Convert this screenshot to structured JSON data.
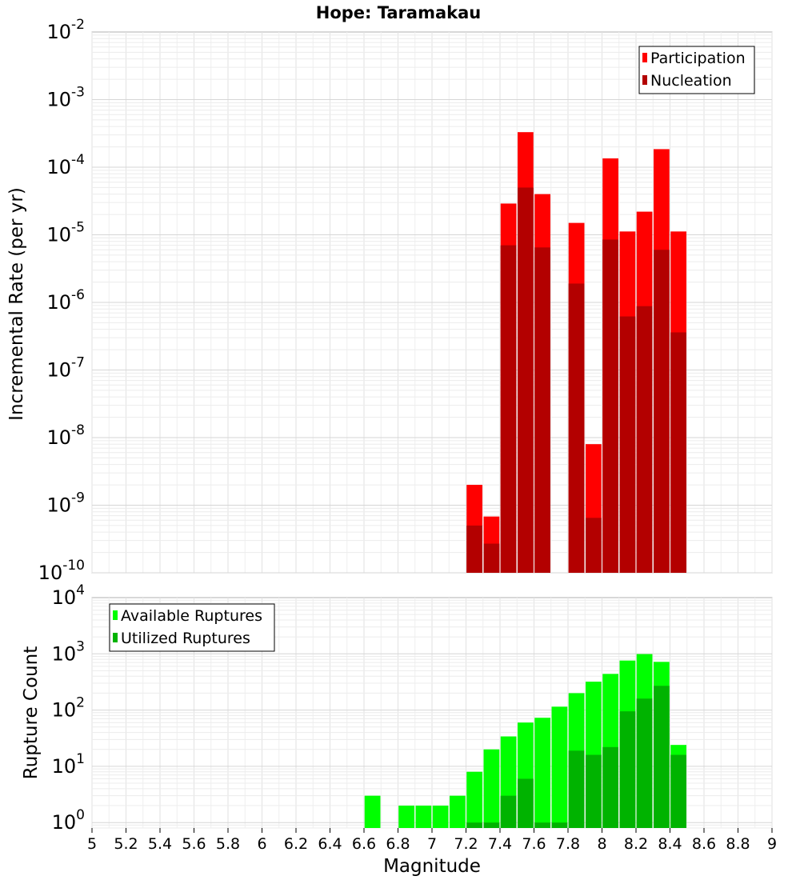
{
  "title": "Hope: Taramakau",
  "xlabel": "Magnitude",
  "x_ticks": [
    "5",
    "5.2",
    "5.4",
    "5.6",
    "5.8",
    "6",
    "6.2",
    "6.4",
    "6.6",
    "6.8",
    "7",
    "7.2",
    "7.4",
    "7.6",
    "7.8",
    "8",
    "8.2",
    "8.4",
    "8.6",
    "8.8",
    "9"
  ],
  "chart_data": [
    {
      "type": "bar",
      "ylabel": "Incremental Rate (per yr)",
      "y_scale": "log",
      "ylim": [
        1e-10,
        0.01
      ],
      "xlim": [
        5,
        9
      ],
      "y_tick_exponents": [
        -2,
        -3,
        -4,
        -5,
        -6,
        -7,
        -8,
        -9,
        -10
      ],
      "legend_position": "top-right",
      "grid": true,
      "x": [
        7.25,
        7.35,
        7.45,
        7.55,
        7.65,
        7.75,
        7.85,
        7.95,
        8.05,
        8.15,
        8.25,
        8.35,
        8.45
      ],
      "series": [
        {
          "name": "Participation",
          "color": "#ff0000",
          "values": [
            2e-09,
            6.8e-10,
            2.9e-05,
            0.00033,
            4e-05,
            null,
            1.5e-05,
            8e-09,
            0.000135,
            1.12e-05,
            2.2e-05,
            0.000185,
            1.12e-05
          ]
        },
        {
          "name": "Nucleation",
          "color": "#b30000",
          "values": [
            5e-10,
            2.7e-10,
            7e-06,
            5e-05,
            6.5e-06,
            null,
            1.9e-06,
            6.5e-10,
            8.5e-06,
            6.2e-07,
            8.8e-07,
            6e-06,
            3.6e-07
          ]
        }
      ]
    },
    {
      "type": "bar",
      "ylabel": "Rupture Count",
      "y_scale": "log",
      "ylim": [
        0.8,
        10000.0
      ],
      "xlim": [
        5,
        9
      ],
      "y_tick_exponents": [
        4,
        3,
        2,
        1,
        0
      ],
      "legend_position": "top-left",
      "grid": true,
      "x": [
        6.65,
        6.75,
        6.85,
        6.95,
        7.05,
        7.15,
        7.25,
        7.35,
        7.45,
        7.55,
        7.65,
        7.75,
        7.85,
        7.95,
        8.05,
        8.15,
        8.25,
        8.35,
        8.45
      ],
      "series": [
        {
          "name": "Available Ruptures",
          "color": "#00ff00",
          "values": [
            3,
            null,
            2,
            2,
            2,
            3,
            8,
            20,
            34,
            60,
            73,
            115,
            200,
            320,
            440,
            760,
            990,
            720,
            24
          ]
        },
        {
          "name": "Utilized Ruptures",
          "color": "#00b300",
          "values": [
            null,
            null,
            null,
            null,
            null,
            null,
            1,
            1,
            3,
            6,
            1,
            1,
            19,
            16,
            22,
            95,
            160,
            270,
            16
          ]
        }
      ]
    }
  ]
}
